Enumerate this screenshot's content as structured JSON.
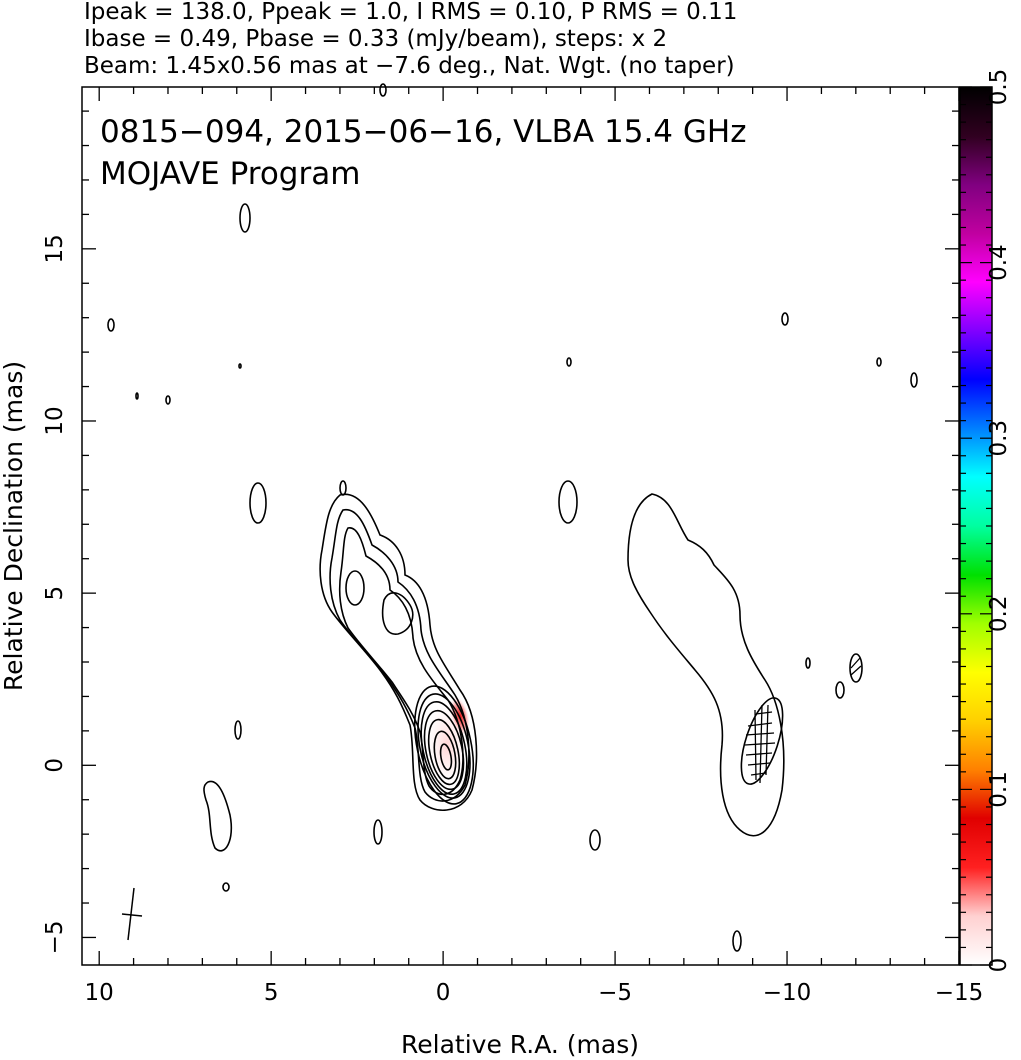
{
  "header": {
    "line1": "Ipeak = 138.0, Ppeak = 1.0, I RMS = 0.10, P RMS = 0.11",
    "line2": "Ibase = 0.49, Pbase = 0.33 (mJy/beam), steps: x 2",
    "line3": "Beam: 1.45x0.56 mas at −7.6 deg., Nat. Wgt. (no taper)"
  },
  "panel": {
    "title_line1": "0815−094, 2015−06−16, VLBA 15.4 GHz",
    "title_line2": "MOJAVE Program"
  },
  "chart_data": {
    "type": "heatmap",
    "description_source": "radio contour map (total intensity contours, polarization color)",
    "xlabel": "Relative R.A. (mas)",
    "ylabel": "Relative Declination (mas)",
    "xlim": [
      10.5,
      -15
    ],
    "ylim": [
      -5.8,
      19.7
    ],
    "x_ticks": [
      10,
      5,
      0,
      -5,
      -10,
      -15
    ],
    "x_tick_labels": [
      "10",
      "5",
      "0",
      "−5",
      "−10",
      "−15"
    ],
    "y_ticks": [
      -5,
      0,
      5,
      10,
      15
    ],
    "y_tick_labels": [
      "−5",
      "0",
      "5",
      "10",
      "15"
    ],
    "colorbar": {
      "range": [
        0,
        0.5
      ],
      "ticks": [
        0,
        0.1,
        0.2,
        0.3,
        0.4,
        0.5
      ],
      "tick_labels": [
        "0",
        "0.1",
        "0.2",
        "0.3",
        "0.4",
        "0.5"
      ],
      "colors": [
        "#ffffff",
        "#ffd0d0",
        "#ff2020",
        "#e00000",
        "#ff8000",
        "#ffd000",
        "#ffff00",
        "#a0ff00",
        "#00e000",
        "#00ffa0",
        "#00ffff",
        "#0080ff",
        "#0000ff",
        "#8000ff",
        "#ff00ff",
        "#c000a0",
        "#800080",
        "#300020",
        "#000000"
      ]
    },
    "beam": {
      "major_mas": 1.45,
      "minor_mas": 0.56,
      "pa_deg": -7.6,
      "center": [
        9.0,
        -4.4
      ]
    },
    "ipeak_mjy_per_beam": 138.0,
    "ppeak_mjy_per_beam": 1.0,
    "i_rms": 0.1,
    "p_rms": 0.11,
    "ibase": 0.49,
    "pbase": 0.33,
    "contour_step": 2
  }
}
